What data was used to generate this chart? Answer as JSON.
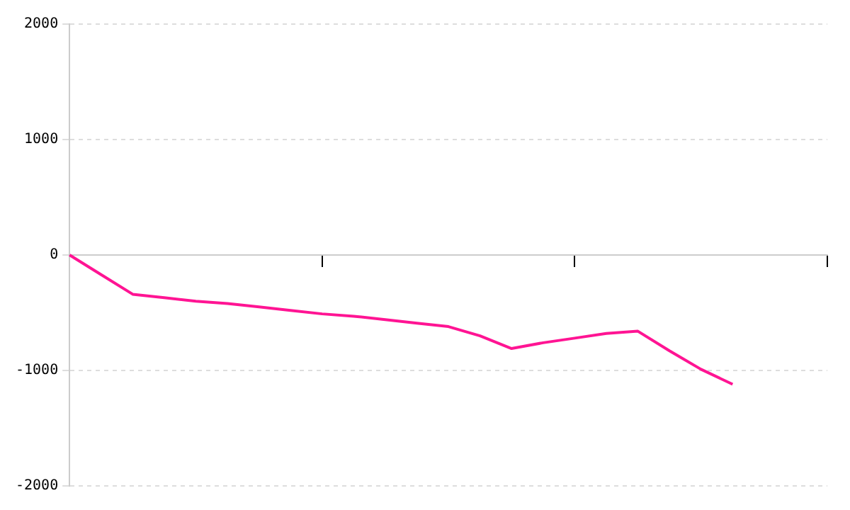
{
  "chart_data": {
    "type": "line",
    "categories": [
      null,
      null,
      null,
      null,
      null,
      null,
      null,
      null,
      null,
      null,
      null,
      null,
      null,
      null,
      null,
      null,
      null,
      null,
      null,
      null,
      null,
      null,
      null,
      null,
      null
    ],
    "series": [
      {
        "color": "#ff1493",
        "values": [
          0,
          -170,
          -340,
          -370,
          -400,
          -420,
          -450,
          -480,
          -510,
          -530,
          -560,
          -590,
          -620,
          -700,
          -810,
          -760,
          -720,
          -680,
          -660,
          -830,
          -990,
          -1120,
          null,
          null,
          null
        ]
      }
    ],
    "ylim": [
      -2000,
      2000
    ],
    "yticks": [
      -2000,
      -1000,
      0,
      1000,
      2000
    ],
    "grid": "y",
    "legend": false,
    "marker": "none",
    "line_style": "solid"
  }
}
